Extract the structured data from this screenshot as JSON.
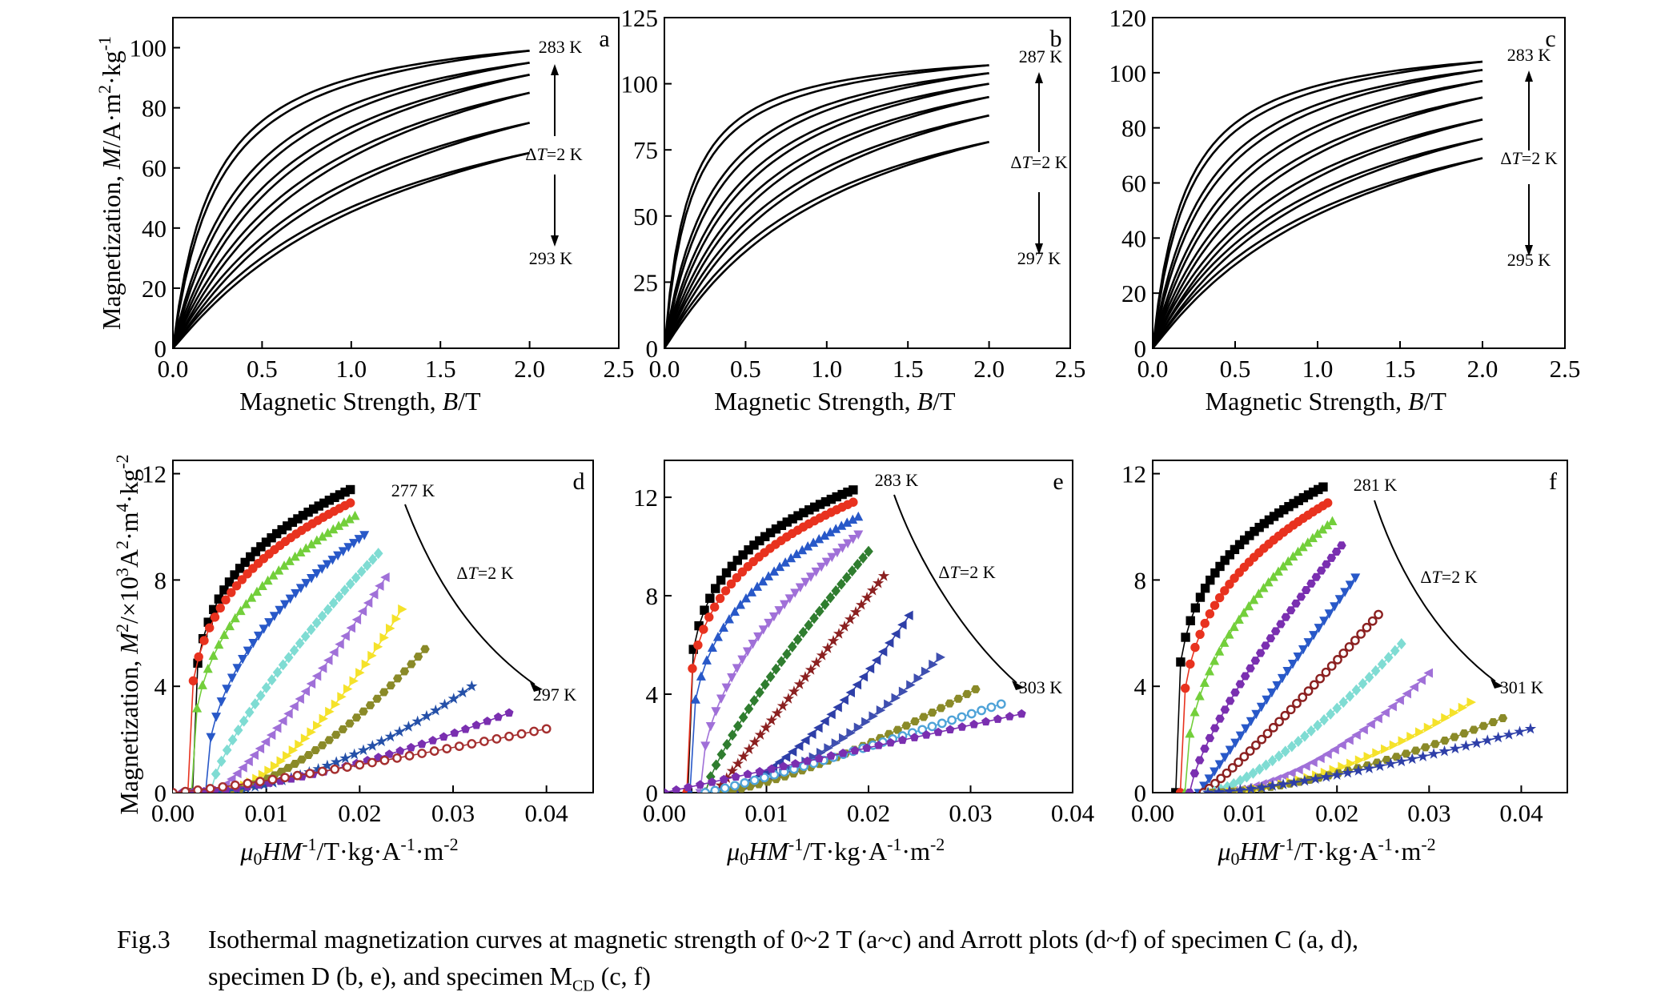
{
  "chart_data": [
    {
      "panel": "a",
      "type": "line",
      "xlim": [
        0,
        2.5
      ],
      "ylim": [
        0,
        110
      ],
      "xticks": [
        "0.0",
        "0.5",
        "1.0",
        "1.5",
        "2.0",
        "2.5"
      ],
      "yticks": [
        "0",
        "20",
        "40",
        "60",
        "80",
        "100"
      ],
      "xlabel_parts": [
        "Magnetic Strength, ",
        "B",
        "/T"
      ],
      "ylabel": "Magnetization, M/A·m²·kg⁻¹",
      "annotations": [
        "283 K",
        "ΔT=2 K",
        "293 K"
      ],
      "series": [
        {
          "T": 283,
          "Ms": 99,
          "b": 0.23
        },
        {
          "T": 285,
          "Ms": 95,
          "b": 0.42
        },
        {
          "T": 287,
          "Ms": 91,
          "b": 0.62
        },
        {
          "T": 289,
          "Ms": 85,
          "b": 0.85
        },
        {
          "T": 291,
          "Ms": 75,
          "b": 1.05
        },
        {
          "T": 293,
          "Ms": 65,
          "b": 1.25
        }
      ]
    },
    {
      "panel": "b",
      "type": "line",
      "xlim": [
        0,
        2.5
      ],
      "ylim": [
        0,
        125
      ],
      "xticks": [
        "0.0",
        "0.5",
        "1.0",
        "1.5",
        "2.0",
        "2.5"
      ],
      "yticks": [
        "0",
        "25",
        "50",
        "75",
        "100",
        "125"
      ],
      "xlabel_parts": [
        "Magnetic Strength, ",
        "B",
        "/T"
      ],
      "annotations": [
        "287 K",
        "ΔT=2 K",
        "297 K"
      ],
      "series": [
        {
          "T": 287,
          "Ms": 107,
          "b": 0.15
        },
        {
          "T": 289,
          "Ms": 104,
          "b": 0.3
        },
        {
          "T": 291,
          "Ms": 100,
          "b": 0.45
        },
        {
          "T": 293,
          "Ms": 95,
          "b": 0.62
        },
        {
          "T": 295,
          "Ms": 88,
          "b": 0.8
        },
        {
          "T": 297,
          "Ms": 78,
          "b": 1.0
        }
      ]
    },
    {
      "panel": "c",
      "type": "line",
      "xlim": [
        0,
        2.5
      ],
      "ylim": [
        0,
        120
      ],
      "xticks": [
        "0.0",
        "0.5",
        "1.0",
        "1.5",
        "2.0",
        "2.5"
      ],
      "yticks": [
        "0",
        "20",
        "40",
        "60",
        "80",
        "100",
        "120"
      ],
      "xlabel_parts": [
        "Magnetic Strength, ",
        "B",
        "/T"
      ],
      "annotations": [
        "283 K",
        "ΔT=2 K",
        "295 K"
      ],
      "series": [
        {
          "T": 283,
          "Ms": 104,
          "b": 0.2
        },
        {
          "T": 285,
          "Ms": 101,
          "b": 0.33
        },
        {
          "T": 287,
          "Ms": 97,
          "b": 0.5
        },
        {
          "T": 289,
          "Ms": 91,
          "b": 0.68
        },
        {
          "T": 291,
          "Ms": 83,
          "b": 0.85
        },
        {
          "T": 293,
          "Ms": 76,
          "b": 1.0
        },
        {
          "T": 295,
          "Ms": 69,
          "b": 1.2
        }
      ]
    },
    {
      "panel": "d",
      "type": "scatter",
      "xlim": [
        0,
        0.045
      ],
      "ylim": [
        0,
        12.5
      ],
      "xticks": [
        "0.00",
        "0.01",
        "0.02",
        "0.03",
        "0.04"
      ],
      "yticks": [
        "0",
        "4",
        "8",
        "12"
      ],
      "xlabel_parts": [
        "μ0HM",
        "-1",
        "/T·kg·A",
        "-1",
        "·m",
        "-2"
      ],
      "ylabel": "Magnetization, M²/×10³A²·m⁴·kg⁻²",
      "annotations": [
        "277 K",
        "ΔT=2 K",
        "297 K"
      ],
      "series": [
        {
          "color": "#000000",
          "marker": "square",
          "x0": 0.0021,
          "xe": 0.019,
          "ye": 11.4,
          "p": 0.25
        },
        {
          "color": "#e8321f",
          "marker": "circle",
          "x0": 0.0016,
          "xe": 0.019,
          "ye": 10.9,
          "p": 0.28
        },
        {
          "color": "#73cf3b",
          "marker": "triangle",
          "x0": 0.002,
          "xe": 0.0195,
          "ye": 10.4,
          "p": 0.35
        },
        {
          "color": "#2858c8",
          "marker": "tri-down",
          "x0": 0.0035,
          "xe": 0.0205,
          "ye": 9.7,
          "p": 0.45
        },
        {
          "color": "#7fdcd3",
          "marker": "diamond",
          "x0": 0.004,
          "xe": 0.022,
          "ye": 9.0,
          "p": 0.75
        },
        {
          "color": "#a070d8",
          "marker": "tri-left",
          "x0": 0.0045,
          "xe": 0.0228,
          "ye": 8.1,
          "p": 1.2
        },
        {
          "color": "#f5e22a",
          "marker": "tri-right",
          "x0": 0.005,
          "xe": 0.0245,
          "ye": 6.9,
          "p": 1.6
        },
        {
          "color": "#8a8a28",
          "marker": "hexagon",
          "x0": 0.005,
          "xe": 0.027,
          "ye": 5.4,
          "p": 1.6
        },
        {
          "color": "#2550a8",
          "marker": "star",
          "x0": 0.003,
          "xe": 0.032,
          "ye": 4.0,
          "p": 1.8
        },
        {
          "color": "#7a2fb0",
          "marker": "pentagon",
          "x0": 0.001,
          "xe": 0.036,
          "ye": 3.0,
          "p": 1.6
        },
        {
          "color": "#a52f2f",
          "marker": "ring",
          "x0": 0.0,
          "xe": 0.04,
          "ye": 2.4,
          "p": 1.2
        }
      ]
    },
    {
      "panel": "e",
      "type": "scatter",
      "xlim": [
        0,
        0.04
      ],
      "ylim": [
        0,
        13.5
      ],
      "xticks": [
        "0.00",
        "0.01",
        "0.02",
        "0.03",
        "0.04"
      ],
      "yticks": [
        "0",
        "4",
        "8",
        "12"
      ],
      "xlabel_parts": [
        "μ0HM",
        "-1",
        "/T·kg·A",
        "-1",
        "·m",
        "-2"
      ],
      "annotations": [
        "283 K",
        "ΔT=2 K",
        "303 K"
      ],
      "series": [
        {
          "color": "#000000",
          "marker": "square",
          "x0": 0.0023,
          "xe": 0.0185,
          "ye": 12.3,
          "p": 0.22
        },
        {
          "color": "#e8321f",
          "marker": "circle",
          "x0": 0.0022,
          "xe": 0.0185,
          "ye": 11.8,
          "p": 0.25
        },
        {
          "color": "#2858c8",
          "marker": "triangle",
          "x0": 0.0025,
          "xe": 0.019,
          "ye": 11.2,
          "p": 0.32
        },
        {
          "color": "#a070d8",
          "marker": "tri-down",
          "x0": 0.0035,
          "xe": 0.019,
          "ye": 10.5,
          "p": 0.5
        },
        {
          "color": "#2f7d2f",
          "marker": "diamond",
          "x0": 0.004,
          "xe": 0.02,
          "ye": 9.8,
          "p": 0.8
        },
        {
          "color": "#8b2020",
          "marker": "star",
          "x0": 0.005,
          "xe": 0.0215,
          "ye": 8.8,
          "p": 1.0
        },
        {
          "color": "#2e3fa8",
          "marker": "tri-left",
          "x0": 0.005,
          "xe": 0.024,
          "ye": 7.2,
          "p": 1.6
        },
        {
          "color": "#3f4fb0",
          "marker": "tri-right",
          "x0": 0.005,
          "xe": 0.027,
          "ye": 5.5,
          "p": 1.6
        },
        {
          "color": "#8a8a28",
          "marker": "hexagon",
          "x0": 0.005,
          "xe": 0.0305,
          "ye": 4.2,
          "p": 1.4
        },
        {
          "color": "#4fa3d8",
          "marker": "ring",
          "x0": 0.004,
          "xe": 0.033,
          "ye": 3.6,
          "p": 1.1
        },
        {
          "color": "#7a2fb0",
          "marker": "pentagon",
          "x0": 0.0,
          "xe": 0.035,
          "ye": 3.2,
          "p": 1.0
        }
      ]
    },
    {
      "panel": "f",
      "type": "scatter",
      "xlim": [
        0,
        0.045
      ],
      "ylim": [
        0,
        12.5
      ],
      "xticks": [
        "0.00",
        "0.01",
        "0.02",
        "0.03",
        "0.04"
      ],
      "yticks": [
        "0",
        "4",
        "8",
        "12"
      ],
      "xlabel_parts": [
        "μ0HM",
        "-1",
        "/T·kg·A",
        "-1",
        "·m",
        "-2"
      ],
      "annotations": [
        "281 K",
        "ΔT=2 K",
        "301 K"
      ],
      "series": [
        {
          "color": "#000000",
          "marker": "square",
          "x0": 0.0025,
          "xe": 0.0185,
          "ye": 11.5,
          "p": 0.25
        },
        {
          "color": "#e8321f",
          "marker": "circle",
          "x0": 0.003,
          "xe": 0.019,
          "ye": 10.9,
          "p": 0.3
        },
        {
          "color": "#73cf3b",
          "marker": "triangle",
          "x0": 0.0035,
          "xe": 0.0195,
          "ye": 10.2,
          "p": 0.45
        },
        {
          "color": "#7a2fb0",
          "marker": "hexagon",
          "x0": 0.004,
          "xe": 0.0205,
          "ye": 9.3,
          "p": 0.75
        },
        {
          "color": "#2858c8",
          "marker": "tri-down",
          "x0": 0.005,
          "xe": 0.022,
          "ye": 8.1,
          "p": 1.0
        },
        {
          "color": "#8b2020",
          "marker": "ring",
          "x0": 0.0055,
          "xe": 0.0245,
          "ye": 6.7,
          "p": 1.1
        },
        {
          "color": "#7fdcd3",
          "marker": "diamond",
          "x0": 0.006,
          "xe": 0.027,
          "ye": 5.6,
          "p": 1.4
        },
        {
          "color": "#a070d8",
          "marker": "tri-left",
          "x0": 0.0065,
          "xe": 0.03,
          "ye": 4.5,
          "p": 1.8
        },
        {
          "color": "#f5e22a",
          "marker": "tri-right",
          "x0": 0.0065,
          "xe": 0.0345,
          "ye": 3.4,
          "p": 1.8
        },
        {
          "color": "#8a8a28",
          "marker": "hexagon",
          "x0": 0.0065,
          "xe": 0.038,
          "ye": 2.8,
          "p": 1.6
        },
        {
          "color": "#2e3fa8",
          "marker": "star",
          "x0": 0.006,
          "xe": 0.041,
          "ye": 2.4,
          "p": 1.4
        }
      ]
    }
  ],
  "caption": {
    "label": "Fig.3",
    "line1": "Isothermal magnetization curves at magnetic strength of 0~2 T (a~c) and Arrott plots (d~f) of specimen C (a, d),",
    "line2_main": "specimen D (b, e), and specimen M",
    "line2_sub": "CD",
    "line2_end": " (c, f)"
  }
}
